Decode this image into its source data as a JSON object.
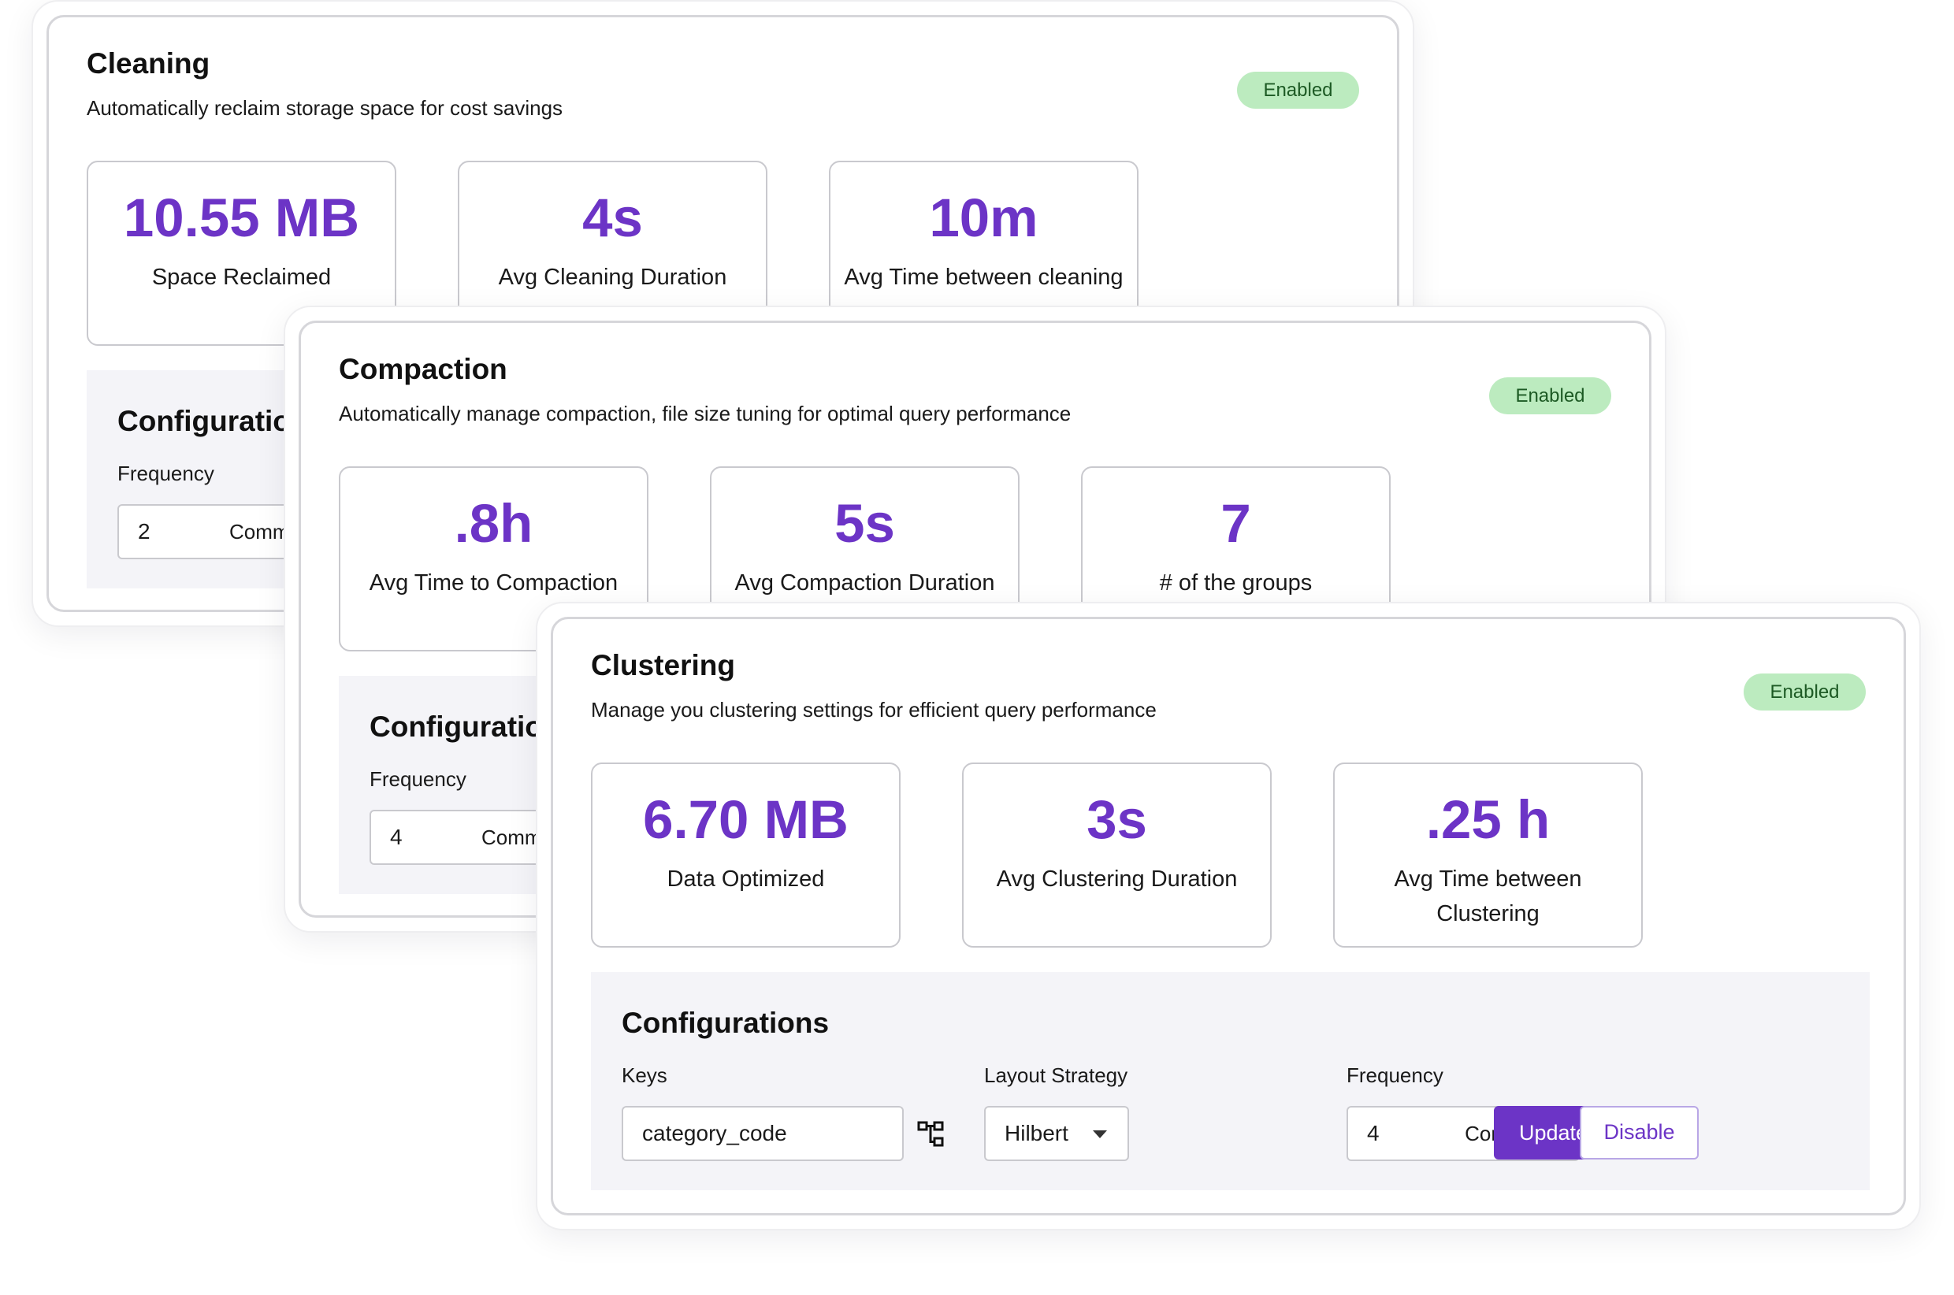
{
  "cleaning": {
    "title": "Cleaning",
    "subtitle": "Automatically reclaim storage space for cost savings",
    "status": "Enabled",
    "metrics": [
      {
        "value": "10.55 MB",
        "label": "Space Reclaimed"
      },
      {
        "value": "4s",
        "label": "Avg Cleaning Duration"
      },
      {
        "value": "10m",
        "label": "Avg Time between cleaning"
      }
    ],
    "config": {
      "title": "Configurations",
      "frequency_label": "Frequency",
      "frequency_value": "2",
      "frequency_unit": "Commit(s)"
    }
  },
  "compaction": {
    "title": "Compaction",
    "subtitle": "Automatically manage compaction, file size tuning for optimal query performance",
    "status": "Enabled",
    "metrics": [
      {
        "value": ".8h",
        "label": "Avg Time to Compaction"
      },
      {
        "value": "5s",
        "label": "Avg Compaction Duration"
      },
      {
        "value": "7",
        "label": "# of the groups"
      }
    ],
    "config": {
      "title": "Configurations",
      "frequency_label": "Frequency",
      "frequency_value": "4",
      "frequency_unit": "Commit(s)"
    }
  },
  "clustering": {
    "title": "Clustering",
    "subtitle": "Manage you clustering settings for efficient query performance",
    "status": "Enabled",
    "metrics": [
      {
        "value": "6.70 MB",
        "label": "Data Optimized"
      },
      {
        "value": "3s",
        "label": "Avg Clustering Duration"
      },
      {
        "value": ".25 h",
        "label": "Avg Time between Clustering"
      }
    ],
    "config": {
      "title": "Configurations",
      "keys_label": "Keys",
      "keys_value": "category_code",
      "keys_icon": "hierarchy-icon",
      "layout_label": "Layout Strategy",
      "layout_value": "Hilbert",
      "frequency_label": "Frequency",
      "frequency_value": "4",
      "frequency_unit": "Commit(s)",
      "update_label": "Update",
      "disable_label": "Disable"
    }
  },
  "colors": {
    "accent": "#6c34c6",
    "badge_bg": "#bcebbf",
    "badge_text": "#1d5a24",
    "config_bg": "#f4f4f8"
  }
}
